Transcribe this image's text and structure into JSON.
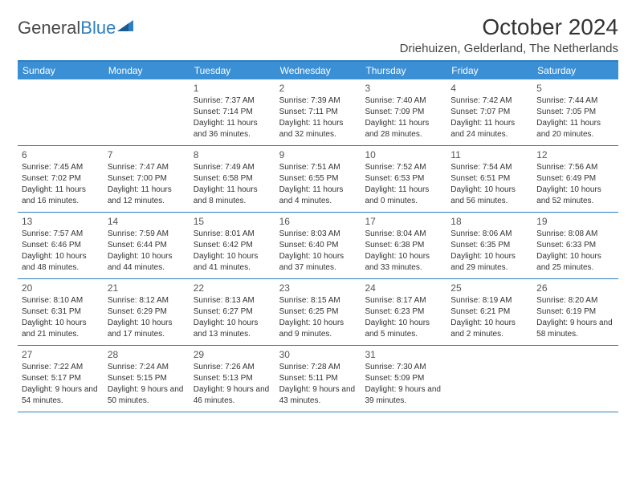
{
  "logo": {
    "part1": "General",
    "part2": "Blue"
  },
  "title": "October 2024",
  "location": "Driehuizen, Gelderland, The Netherlands",
  "colors": {
    "header_bg": "#3b8fd4",
    "header_text": "#ffffff",
    "border": "#2d7fc1",
    "text": "#333333",
    "logo_gray": "#4a4a4a",
    "logo_blue": "#2d7fc1",
    "page_bg": "#ffffff"
  },
  "weekdays": [
    "Sunday",
    "Monday",
    "Tuesday",
    "Wednesday",
    "Thursday",
    "Friday",
    "Saturday"
  ],
  "weeks": [
    [
      {
        "num": "",
        "sunrise": "",
        "sunset": "",
        "daylight": ""
      },
      {
        "num": "",
        "sunrise": "",
        "sunset": "",
        "daylight": ""
      },
      {
        "num": "1",
        "sunrise": "Sunrise: 7:37 AM",
        "sunset": "Sunset: 7:14 PM",
        "daylight": "Daylight: 11 hours and 36 minutes."
      },
      {
        "num": "2",
        "sunrise": "Sunrise: 7:39 AM",
        "sunset": "Sunset: 7:11 PM",
        "daylight": "Daylight: 11 hours and 32 minutes."
      },
      {
        "num": "3",
        "sunrise": "Sunrise: 7:40 AM",
        "sunset": "Sunset: 7:09 PM",
        "daylight": "Daylight: 11 hours and 28 minutes."
      },
      {
        "num": "4",
        "sunrise": "Sunrise: 7:42 AM",
        "sunset": "Sunset: 7:07 PM",
        "daylight": "Daylight: 11 hours and 24 minutes."
      },
      {
        "num": "5",
        "sunrise": "Sunrise: 7:44 AM",
        "sunset": "Sunset: 7:05 PM",
        "daylight": "Daylight: 11 hours and 20 minutes."
      }
    ],
    [
      {
        "num": "6",
        "sunrise": "Sunrise: 7:45 AM",
        "sunset": "Sunset: 7:02 PM",
        "daylight": "Daylight: 11 hours and 16 minutes."
      },
      {
        "num": "7",
        "sunrise": "Sunrise: 7:47 AM",
        "sunset": "Sunset: 7:00 PM",
        "daylight": "Daylight: 11 hours and 12 minutes."
      },
      {
        "num": "8",
        "sunrise": "Sunrise: 7:49 AM",
        "sunset": "Sunset: 6:58 PM",
        "daylight": "Daylight: 11 hours and 8 minutes."
      },
      {
        "num": "9",
        "sunrise": "Sunrise: 7:51 AM",
        "sunset": "Sunset: 6:55 PM",
        "daylight": "Daylight: 11 hours and 4 minutes."
      },
      {
        "num": "10",
        "sunrise": "Sunrise: 7:52 AM",
        "sunset": "Sunset: 6:53 PM",
        "daylight": "Daylight: 11 hours and 0 minutes."
      },
      {
        "num": "11",
        "sunrise": "Sunrise: 7:54 AM",
        "sunset": "Sunset: 6:51 PM",
        "daylight": "Daylight: 10 hours and 56 minutes."
      },
      {
        "num": "12",
        "sunrise": "Sunrise: 7:56 AM",
        "sunset": "Sunset: 6:49 PM",
        "daylight": "Daylight: 10 hours and 52 minutes."
      }
    ],
    [
      {
        "num": "13",
        "sunrise": "Sunrise: 7:57 AM",
        "sunset": "Sunset: 6:46 PM",
        "daylight": "Daylight: 10 hours and 48 minutes."
      },
      {
        "num": "14",
        "sunrise": "Sunrise: 7:59 AM",
        "sunset": "Sunset: 6:44 PM",
        "daylight": "Daylight: 10 hours and 44 minutes."
      },
      {
        "num": "15",
        "sunrise": "Sunrise: 8:01 AM",
        "sunset": "Sunset: 6:42 PM",
        "daylight": "Daylight: 10 hours and 41 minutes."
      },
      {
        "num": "16",
        "sunrise": "Sunrise: 8:03 AM",
        "sunset": "Sunset: 6:40 PM",
        "daylight": "Daylight: 10 hours and 37 minutes."
      },
      {
        "num": "17",
        "sunrise": "Sunrise: 8:04 AM",
        "sunset": "Sunset: 6:38 PM",
        "daylight": "Daylight: 10 hours and 33 minutes."
      },
      {
        "num": "18",
        "sunrise": "Sunrise: 8:06 AM",
        "sunset": "Sunset: 6:35 PM",
        "daylight": "Daylight: 10 hours and 29 minutes."
      },
      {
        "num": "19",
        "sunrise": "Sunrise: 8:08 AM",
        "sunset": "Sunset: 6:33 PM",
        "daylight": "Daylight: 10 hours and 25 minutes."
      }
    ],
    [
      {
        "num": "20",
        "sunrise": "Sunrise: 8:10 AM",
        "sunset": "Sunset: 6:31 PM",
        "daylight": "Daylight: 10 hours and 21 minutes."
      },
      {
        "num": "21",
        "sunrise": "Sunrise: 8:12 AM",
        "sunset": "Sunset: 6:29 PM",
        "daylight": "Daylight: 10 hours and 17 minutes."
      },
      {
        "num": "22",
        "sunrise": "Sunrise: 8:13 AM",
        "sunset": "Sunset: 6:27 PM",
        "daylight": "Daylight: 10 hours and 13 minutes."
      },
      {
        "num": "23",
        "sunrise": "Sunrise: 8:15 AM",
        "sunset": "Sunset: 6:25 PM",
        "daylight": "Daylight: 10 hours and 9 minutes."
      },
      {
        "num": "24",
        "sunrise": "Sunrise: 8:17 AM",
        "sunset": "Sunset: 6:23 PM",
        "daylight": "Daylight: 10 hours and 5 minutes."
      },
      {
        "num": "25",
        "sunrise": "Sunrise: 8:19 AM",
        "sunset": "Sunset: 6:21 PM",
        "daylight": "Daylight: 10 hours and 2 minutes."
      },
      {
        "num": "26",
        "sunrise": "Sunrise: 8:20 AM",
        "sunset": "Sunset: 6:19 PM",
        "daylight": "Daylight: 9 hours and 58 minutes."
      }
    ],
    [
      {
        "num": "27",
        "sunrise": "Sunrise: 7:22 AM",
        "sunset": "Sunset: 5:17 PM",
        "daylight": "Daylight: 9 hours and 54 minutes."
      },
      {
        "num": "28",
        "sunrise": "Sunrise: 7:24 AM",
        "sunset": "Sunset: 5:15 PM",
        "daylight": "Daylight: 9 hours and 50 minutes."
      },
      {
        "num": "29",
        "sunrise": "Sunrise: 7:26 AM",
        "sunset": "Sunset: 5:13 PM",
        "daylight": "Daylight: 9 hours and 46 minutes."
      },
      {
        "num": "30",
        "sunrise": "Sunrise: 7:28 AM",
        "sunset": "Sunset: 5:11 PM",
        "daylight": "Daylight: 9 hours and 43 minutes."
      },
      {
        "num": "31",
        "sunrise": "Sunrise: 7:30 AM",
        "sunset": "Sunset: 5:09 PM",
        "daylight": "Daylight: 9 hours and 39 minutes."
      },
      {
        "num": "",
        "sunrise": "",
        "sunset": "",
        "daylight": ""
      },
      {
        "num": "",
        "sunrise": "",
        "sunset": "",
        "daylight": ""
      }
    ]
  ]
}
